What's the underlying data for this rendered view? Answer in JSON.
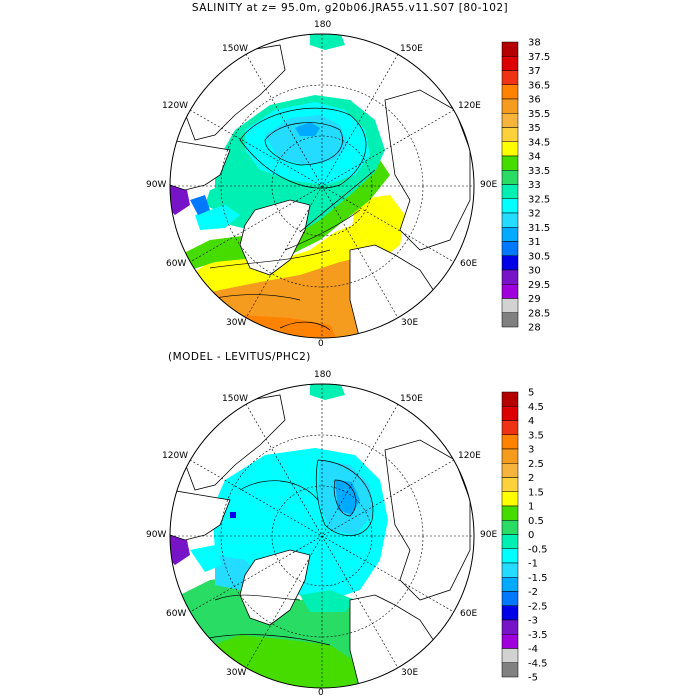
{
  "header": {
    "title": "SALINITY at z=  95.0m, g20b06.JRA55.v11.S07 [80-102]"
  },
  "panel_bottom": {
    "title": "(MODEL - LEVITUS/PHC2)"
  },
  "longitude_labels": {
    "top": "180",
    "bottom": "0",
    "w150": "150W",
    "e150": "150E",
    "w120": "120W",
    "e120": "120E",
    "w90": "90W",
    "e90": "90E",
    "w60": "60W",
    "e60": "60E",
    "w30": "30W",
    "e30": "30E"
  },
  "colorbar_top": {
    "labels": [
      "38",
      "37.5",
      "37",
      "36.5",
      "36",
      "35.5",
      "35",
      "34.5",
      "34",
      "33.5",
      "33",
      "32.5",
      "32",
      "31.5",
      "31",
      "30.5",
      "30",
      "29.5",
      "29",
      "28.5",
      "28"
    ],
    "colors": [
      "#b40000",
      "#dc0000",
      "#f03214",
      "#ff8200",
      "#f59b1e",
      "#f7b43c",
      "#fcd23c",
      "#ffff00",
      "#46dc00",
      "#28dc64",
      "#00f0b4",
      "#00ffff",
      "#23dcff",
      "#00aaff",
      "#0078ff",
      "#0000e6",
      "#7814c8",
      "#a000dc",
      "#d2d2d2",
      "#808080"
    ]
  },
  "colorbar_bottom": {
    "labels": [
      "5",
      "4.5",
      "4",
      "3.5",
      "3",
      "2.5",
      "2",
      "1.5",
      "1",
      "0.5",
      "0",
      "-0.5",
      "-1",
      "-1.5",
      "-2",
      "-2.5",
      "-3",
      "-3.5",
      "-4",
      "-4.5",
      "-5"
    ],
    "colors": [
      "#b40000",
      "#dc0000",
      "#f03214",
      "#ff8200",
      "#f59b1e",
      "#f7b43c",
      "#fcd23c",
      "#ffff00",
      "#46dc00",
      "#28dc64",
      "#00f0b4",
      "#00ffff",
      "#23dcff",
      "#00aaff",
      "#0078ff",
      "#0000e6",
      "#7814c8",
      "#a000dc",
      "#d2d2d2",
      "#808080"
    ]
  }
}
